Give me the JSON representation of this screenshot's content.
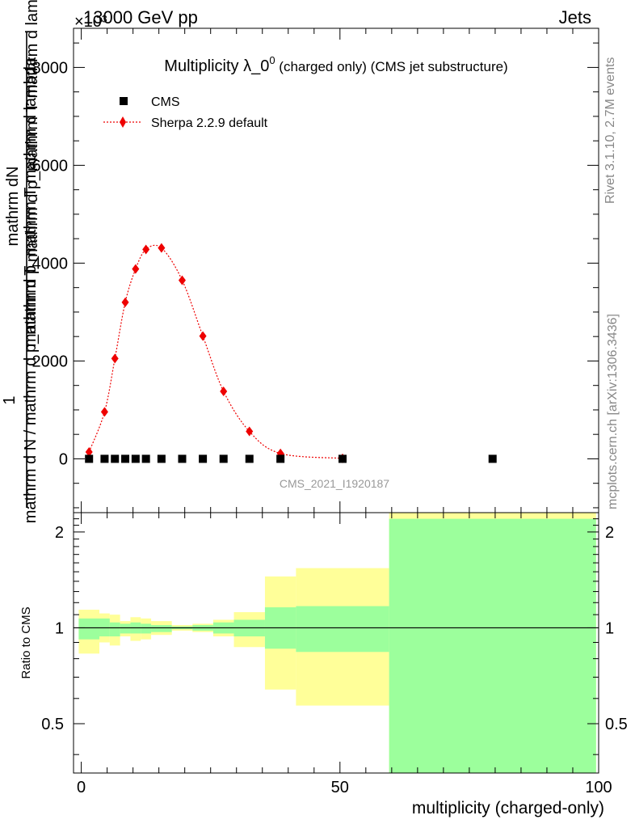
{
  "header": {
    "top_left": "13000 GeV pp",
    "top_right": "Jets",
    "exponent_label": "×10³"
  },
  "side_labels": {
    "events": "Rivet 3.1.10,  2.7M events",
    "source": "mcplots.cern.ch [arXiv:1306.3436]"
  },
  "colors": {
    "cms": "#000000",
    "sherpa": "#ee0000",
    "band_inner": "#9cff9c",
    "band_outer": "#ffff99"
  },
  "chart_data": [
    {
      "type": "scatter",
      "title": "Multiplicity λ_0⁰ (charged only) (CMS jet substructure)",
      "title_main": "Multiplicity λ_0",
      "title_sup": "0",
      "title_rest": " (charged only) (CMS jet substructure)",
      "ylabel_top": "mathrm dN",
      "ylabel_top2": "mathrm d p_mathrm T mathrm d lambda",
      "ylabel_one": "1",
      "ylabel_bottom": "mathrm d N / mathrm d p_mathrm T",
      "ylabel_mid": "mathrm d p_mathrm T mathrm d lambda",
      "xlim": [
        -1.5,
        100
      ],
      "ylim": [
        -1100,
        8800
      ],
      "y_ticks": [
        0,
        2000,
        4000,
        6000,
        8000
      ],
      "y_tick_labels": [
        "0",
        "2000",
        "4000",
        "6000",
        "8000"
      ],
      "watermark": "CMS_2021_I1920187",
      "legend_position": "top-left",
      "series": [
        {
          "name": "CMS",
          "marker": "square",
          "x": [
            1.5,
            4.5,
            6.5,
            8.5,
            10.5,
            12.5,
            15.5,
            19.5,
            23.5,
            27.5,
            32.5,
            38.5,
            50.5,
            79.5
          ],
          "y": [
            0,
            0,
            0,
            0,
            0,
            0,
            0,
            0,
            0,
            0,
            0,
            0,
            0,
            0
          ]
        },
        {
          "name": "Sherpa 2.2.9 default",
          "marker": "diamond",
          "line": "dotted",
          "x": [
            1.5,
            4.5,
            6.5,
            8.5,
            10.5,
            12.5,
            15.5,
            19.5,
            23.5,
            27.5,
            32.5,
            38.5,
            50.5
          ],
          "y": [
            140,
            960,
            2050,
            3200,
            3880,
            4280,
            4310,
            3650,
            2510,
            1380,
            560,
            110,
            10
          ]
        }
      ]
    },
    {
      "type": "area",
      "ylabel": "Ratio to CMS",
      "xlabel": "multiplicity (charged-only)",
      "xlim": [
        -1.5,
        100
      ],
      "ylim": [
        0.35,
        2.3
      ],
      "y_ticks": [
        0.5,
        1,
        2
      ],
      "y_tick_labels": [
        "0.5",
        "1",
        "2"
      ],
      "x_ticks": [
        0,
        50,
        100
      ],
      "x_tick_labels": [
        "0",
        "50",
        "100"
      ],
      "reference": 1,
      "bins": [
        {
          "lo": -0.5,
          "hi": 3.5,
          "inner": [
            0.92,
            1.07
          ],
          "outer": [
            0.83,
            1.14
          ]
        },
        {
          "lo": 3.5,
          "hi": 5.5,
          "inner": [
            0.94,
            1.07
          ],
          "outer": [
            0.9,
            1.11
          ]
        },
        {
          "lo": 5.5,
          "hi": 7.5,
          "inner": [
            0.94,
            1.04
          ],
          "outer": [
            0.88,
            1.1
          ]
        },
        {
          "lo": 7.5,
          "hi": 9.5,
          "inner": [
            0.96,
            1.03
          ],
          "outer": [
            0.94,
            1.05
          ]
        },
        {
          "lo": 9.5,
          "hi": 11.5,
          "inner": [
            0.96,
            1.04
          ],
          "outer": [
            0.91,
            1.08
          ]
        },
        {
          "lo": 11.5,
          "hi": 13.5,
          "inner": [
            0.96,
            1.03
          ],
          "outer": [
            0.92,
            1.07
          ]
        },
        {
          "lo": 13.5,
          "hi": 17.5,
          "inner": [
            0.97,
            1.02
          ],
          "outer": [
            0.95,
            1.05
          ]
        },
        {
          "lo": 17.5,
          "hi": 21.5,
          "inner": [
            0.99,
            1.01
          ],
          "outer": [
            0.98,
            1.02
          ]
        },
        {
          "lo": 21.5,
          "hi": 25.5,
          "inner": [
            0.98,
            1.02
          ],
          "outer": [
            0.97,
            1.03
          ]
        },
        {
          "lo": 25.5,
          "hi": 29.5,
          "inner": [
            0.96,
            1.04
          ],
          "outer": [
            0.94,
            1.06
          ]
        },
        {
          "lo": 29.5,
          "hi": 35.5,
          "inner": [
            0.94,
            1.06
          ],
          "outer": [
            0.87,
            1.12
          ]
        },
        {
          "lo": 35.5,
          "hi": 41.5,
          "inner": [
            0.86,
            1.16
          ],
          "outer": [
            0.64,
            1.45
          ]
        },
        {
          "lo": 41.5,
          "hi": 59.5,
          "inner": [
            0.84,
            1.17
          ],
          "outer": [
            0.57,
            1.54
          ]
        },
        {
          "lo": 59.5,
          "hi": 99.5,
          "inner": [
            0.35,
            2.2
          ],
          "outer": [
            0.35,
            2.45
          ]
        }
      ]
    }
  ]
}
